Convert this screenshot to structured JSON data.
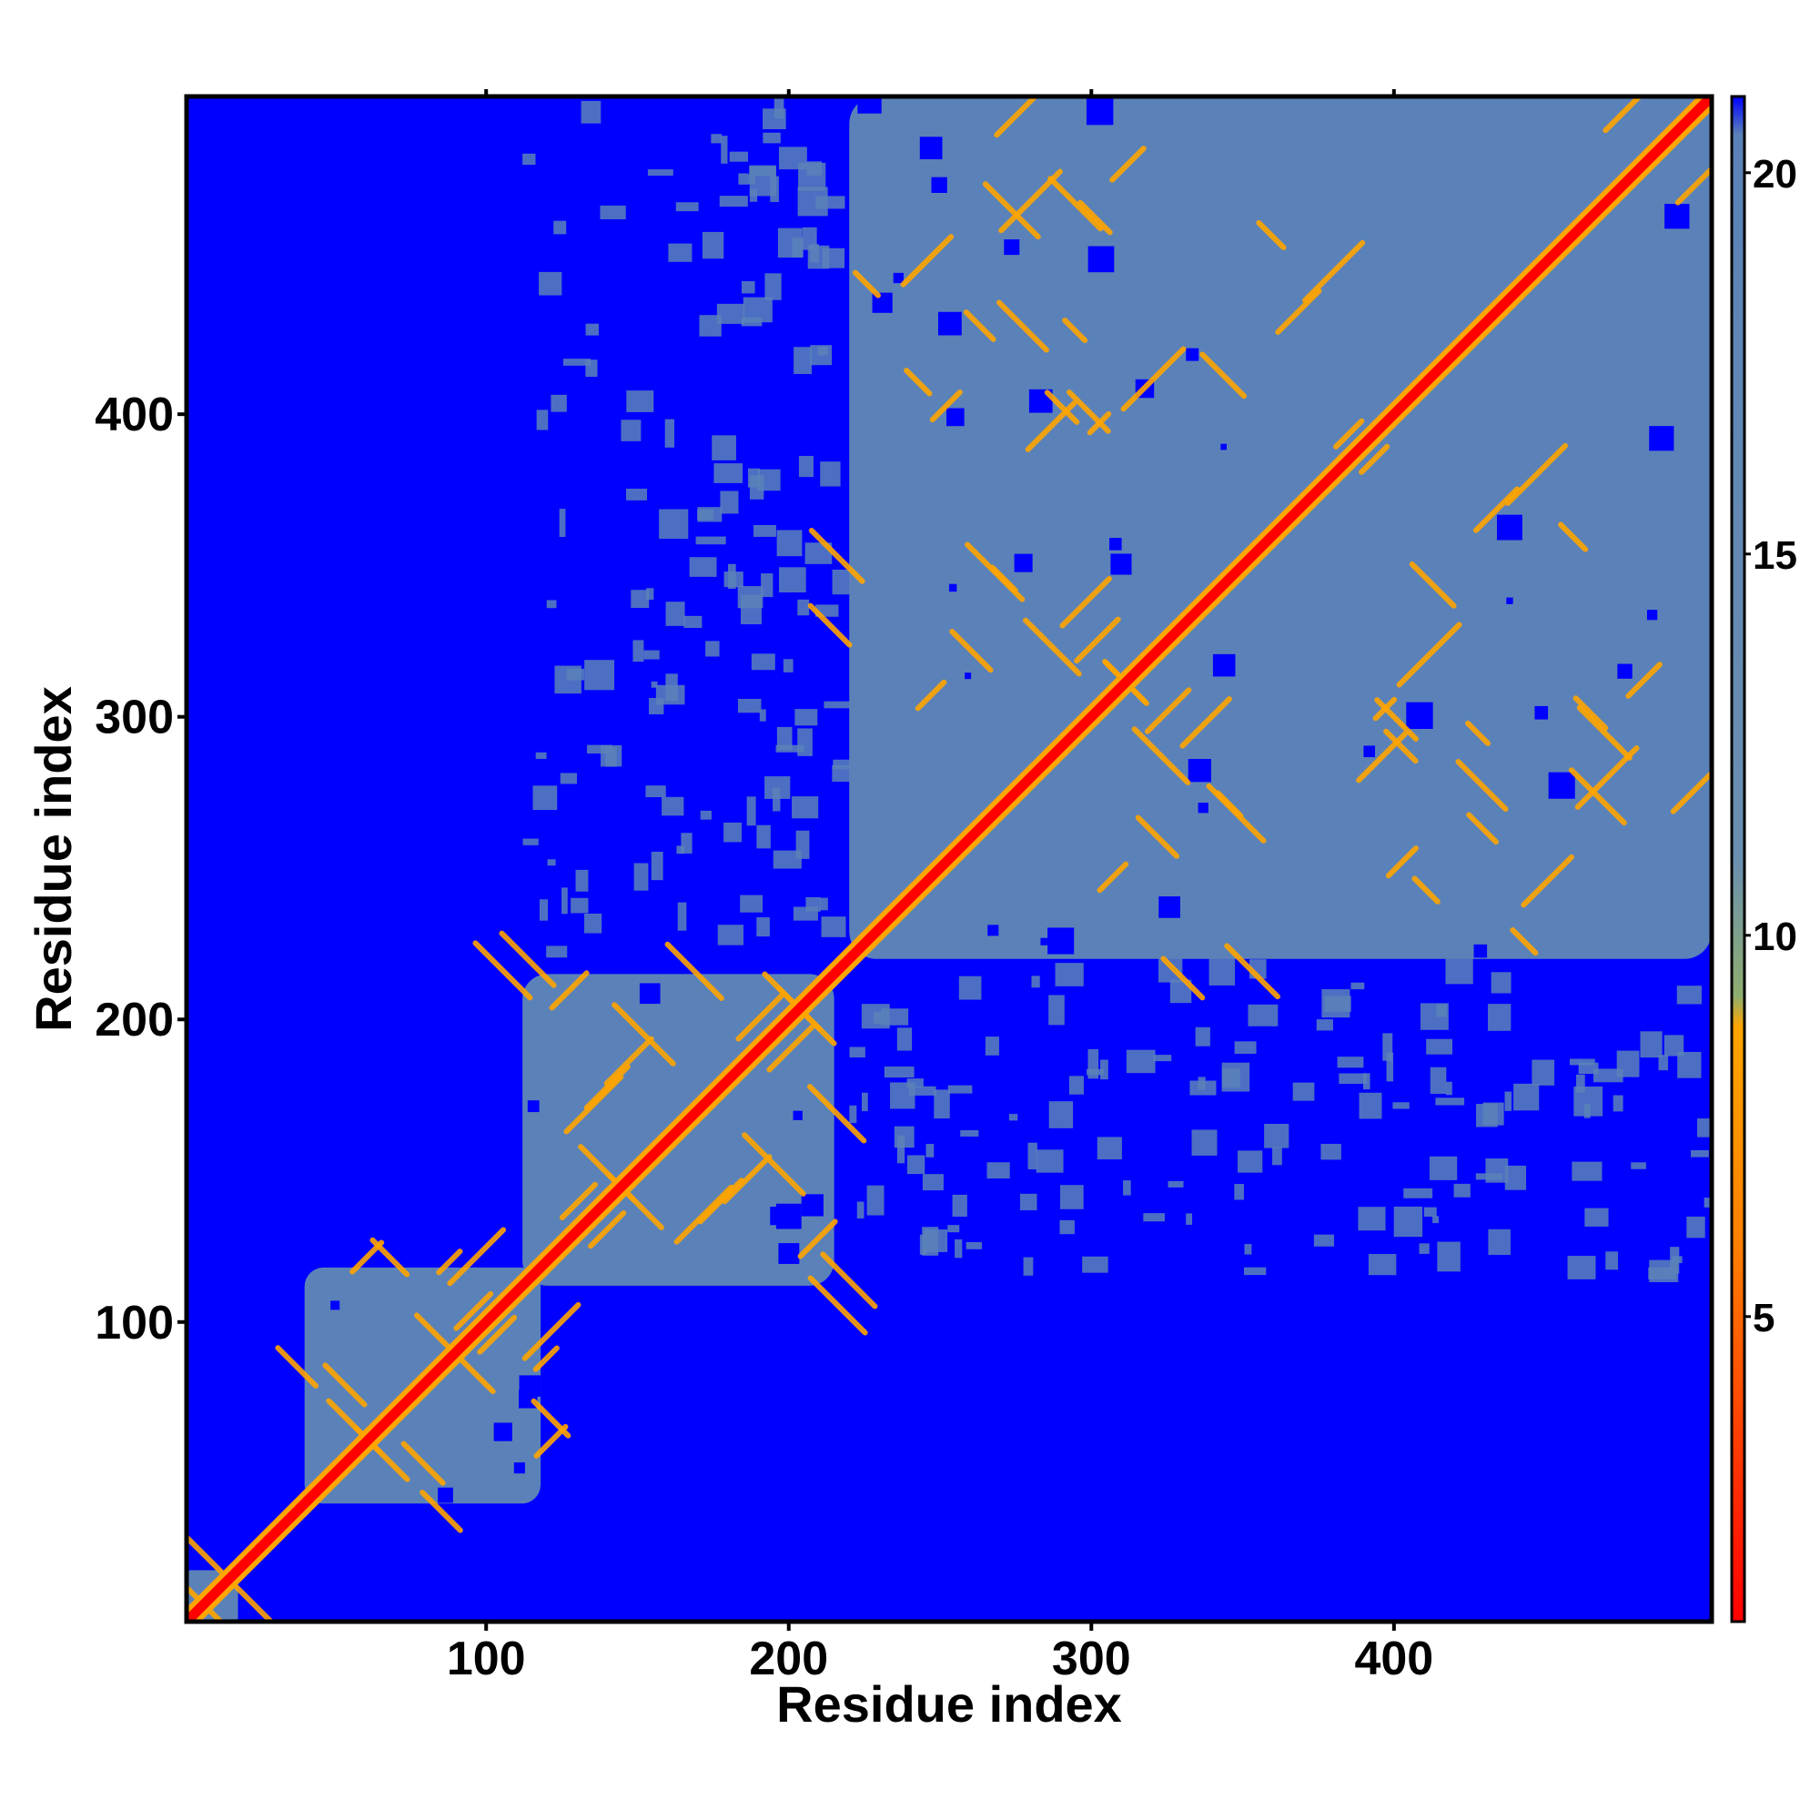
{
  "chart_data": {
    "type": "heatmap",
    "title": "",
    "xlabel": "Residue index",
    "ylabel": "Residue index",
    "xlim": [
      1,
      505
    ],
    "ylim": [
      1,
      505
    ],
    "xticks": [
      100,
      200,
      300,
      400
    ],
    "yticks": [
      100,
      200,
      300,
      400
    ],
    "grid": false,
    "colorbar": {
      "position": "right",
      "range": [
        1,
        21
      ],
      "ticks": [
        5,
        10,
        15,
        20
      ],
      "stops": [
        {
          "value": 1,
          "color": "#ff0000"
        },
        {
          "value": 6,
          "color": "#ff8000"
        },
        {
          "value": 8.8,
          "color": "#ffa500"
        },
        {
          "value": 9.2,
          "color": "#8fae6f"
        },
        {
          "value": 11,
          "color": "#6a8fb0"
        },
        {
          "value": 20.5,
          "color": "#5b82b8"
        },
        {
          "value": 21,
          "color": "#0000ff"
        }
      ]
    },
    "background_color": "#0000ff",
    "background_value": 21,
    "diagonal_color": "#ff0000",
    "domain_fill_color": "#5b82b8",
    "contact_color": "#ffa500",
    "domains": [
      {
        "start": 1,
        "end": 18
      },
      {
        "start": 40,
        "end": 118
      },
      {
        "start": 112,
        "end": 215
      },
      {
        "start": 220,
        "end": 505
      }
    ],
    "inter_domain_contacts": [
      {
        "x": [
          112,
          215
        ],
        "y": [
          220,
          505
        ]
      },
      {
        "x": [
          220,
          505
        ],
        "y": [
          112,
          215
        ]
      }
    ]
  }
}
